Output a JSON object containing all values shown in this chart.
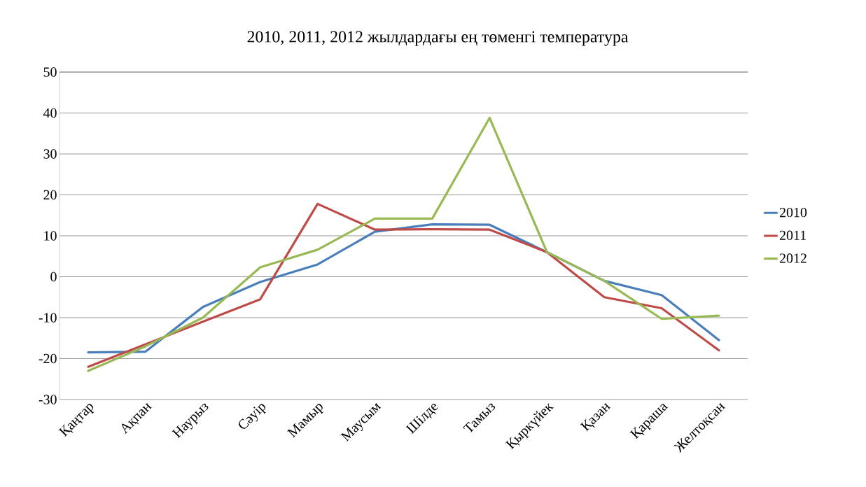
{
  "chart_data": {
    "type": "line",
    "title": "2010, 2011, 2012 жылдардағы ең төменгі температура",
    "categories": [
      "Қаңтар",
      "Ақпан",
      "Наурыз",
      "Сәуір",
      "Мамыр",
      "Маусым",
      "Шілде",
      "Тамыз",
      "Қыркүйек",
      "Қазан",
      "Қараша",
      "Желтоқсан"
    ],
    "series": [
      {
        "name": "2010",
        "color": "#4a7ebb",
        "values": [
          -18.5,
          -18.3,
          -7.4,
          -1.3,
          3,
          11,
          12.8,
          12.7,
          6,
          -1,
          -4.5,
          -15.5
        ]
      },
      {
        "name": "2011",
        "color": "#be4b48",
        "values": [
          -22,
          -16.5,
          -11,
          -5.5,
          17.8,
          11.5,
          11.6,
          11.5,
          6,
          -5,
          -7.7,
          -18
        ]
      },
      {
        "name": "2012",
        "color": "#98b954",
        "values": [
          -23,
          -17,
          -10,
          2.3,
          6.6,
          14.2,
          14.2,
          38.8,
          6,
          -1,
          -10.3,
          -9.5
        ]
      }
    ],
    "ylim": [
      -30,
      50
    ],
    "yticks": [
      -30,
      -20,
      -10,
      0,
      10,
      20,
      30,
      40,
      50
    ],
    "grid": "y",
    "legend": "right",
    "marker": "none",
    "line_style": "solid"
  }
}
